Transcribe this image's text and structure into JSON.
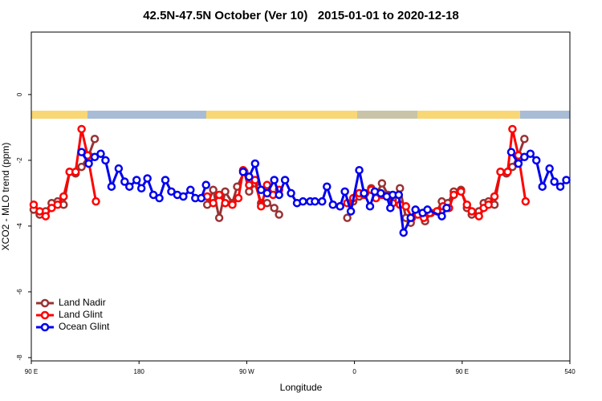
{
  "chart_data": {
    "type": "line",
    "title": "42.5N-47.5N October (Ver 10)   2015-01-01 to 2020-12-18",
    "xlabel": "Longitude",
    "ylabel": "XCO2 - MLO trend (ppm)",
    "xlim": [
      90,
      540
    ],
    "xticks": [
      {
        "value": 90,
        "label": "90 E"
      },
      180,
      {
        "value": 270,
        "label": "90 W"
      },
      {
        "value": 360,
        "label": "0"
      },
      {
        "value": 450,
        "label": "90 E"
      },
      540
    ],
    "ylim": [
      -8.1,
      1.9
    ],
    "yticks": [
      0,
      -2,
      -4,
      -6,
      -8
    ],
    "legend": "lower left",
    "series": [
      {
        "name": "Land Nadir",
        "color": "#993333",
        "x": [
          92,
          97,
          102,
          107,
          112,
          117,
          122,
          127,
          132,
          138,
          143,
          null,
          237,
          242,
          247,
          252,
          258,
          262,
          268,
          272,
          277,
          282,
          287,
          293,
          297,
          null,
          354,
          359,
          364,
          369,
          374,
          378,
          383,
          388,
          392,
          398,
          403,
          407,
          413,
          419,
          424,
          429,
          433,
          438,
          443,
          449,
          454,
          458,
          464,
          468,
          472,
          477,
          482,
          487,
          492,
          497,
          502
        ],
        "values": [
          -3.5,
          -3.65,
          -3.55,
          -3.3,
          -3.25,
          -3.35,
          -2.35,
          -2.4,
          -2.2,
          -1.85,
          -1.35,
          null,
          -3.35,
          -2.9,
          -3.75,
          -2.95,
          -3.3,
          -2.8,
          -2.35,
          -2.95,
          -2.7,
          -3.3,
          -3.3,
          -3.45,
          -3.65,
          null,
          -3.75,
          -3.25,
          -3.1,
          -3.0,
          -2.85,
          -3.05,
          -2.7,
          -3.05,
          -3.2,
          -2.85,
          -3.75,
          -3.9,
          -3.6,
          -3.85,
          -3.6,
          -3.55,
          -3.25,
          -3.3,
          -2.95,
          -2.9,
          -3.45,
          -3.65,
          -3.55,
          -3.3,
          -3.25,
          -3.35,
          -2.35,
          -2.4,
          -2.2,
          -1.85,
          -1.35
        ]
      },
      {
        "name": "Land Glint",
        "color": "#ff0000",
        "x": [
          92,
          97,
          102,
          107,
          112,
          117,
          122,
          127,
          132,
          137,
          144,
          null,
          237,
          242,
          247,
          252,
          258,
          263,
          267,
          272,
          277,
          282,
          287,
          292,
          297,
          null,
          348,
          354,
          359,
          364,
          368,
          374,
          378,
          383,
          388,
          392,
          398,
          403,
          408,
          413,
          418,
          423,
          429,
          434,
          439,
          443,
          449,
          454,
          458,
          464,
          468,
          472,
          477,
          482,
          488,
          492,
          497,
          503
        ],
        "values": [
          -3.35,
          -3.55,
          -3.7,
          -3.45,
          -3.35,
          -3.1,
          -2.35,
          -2.35,
          -1.05,
          -1.85,
          -3.25,
          null,
          -3.1,
          -3.3,
          -3.05,
          -3.3,
          -3.35,
          -3.15,
          -2.3,
          -2.75,
          -2.6,
          -3.4,
          -2.75,
          -3.05,
          -2.9,
          null,
          -3.4,
          -3.3,
          -3.15,
          -3.0,
          -3.05,
          -2.9,
          -3.15,
          -3.05,
          -3.1,
          -3.3,
          -3.35,
          -3.4,
          -3.75,
          -3.65,
          -3.75,
          -3.6,
          -3.55,
          -3.4,
          -3.45,
          -3.05,
          -2.95,
          -3.35,
          -3.55,
          -3.7,
          -3.45,
          -3.35,
          -3.1,
          -2.35,
          -2.35,
          -1.05,
          -1.85,
          -3.25
        ]
      },
      {
        "name": "Ocean Glint",
        "color": "#0000ee",
        "x": [
          132,
          138,
          143,
          148,
          152,
          157,
          163,
          168,
          172,
          178,
          182,
          187,
          192,
          197,
          202,
          207,
          212,
          217,
          223,
          227,
          232,
          236,
          null,
          267,
          272,
          277,
          282,
          287,
          293,
          297,
          302,
          307,
          312,
          317,
          323,
          327,
          333,
          337,
          342,
          348,
          352,
          357,
          364,
          368,
          373,
          377,
          382,
          387,
          390,
          392,
          397,
          401,
          407,
          411,
          417,
          421,
          433,
          437,
          null,
          491,
          497,
          502,
          507,
          512,
          517,
          523,
          527,
          532,
          537
        ],
        "values": [
          -1.75,
          -2.1,
          -1.9,
          -1.8,
          -2.0,
          -2.8,
          -2.25,
          -2.65,
          -2.8,
          -2.6,
          -2.85,
          -2.55,
          -3.05,
          -3.15,
          -2.6,
          -2.95,
          -3.05,
          -3.1,
          -2.9,
          -3.15,
          -3.15,
          -2.75,
          null,
          -2.35,
          -2.5,
          -2.1,
          -2.9,
          -3.0,
          -2.6,
          -3.05,
          -2.6,
          -3.0,
          -3.3,
          -3.25,
          -3.25,
          -3.25,
          -3.25,
          -2.8,
          -3.35,
          -3.4,
          -2.95,
          -3.55,
          -2.3,
          -3.0,
          -3.4,
          -2.95,
          -3.0,
          -3.1,
          -3.45,
          -3.05,
          -3.05,
          -4.2,
          -3.75,
          -3.5,
          -3.6,
          -3.5,
          -3.7,
          -3.45,
          null,
          -1.75,
          -2.1,
          -1.9,
          -1.8,
          -2.0,
          -2.8,
          -2.25,
          -2.65,
          -2.8,
          -2.6
        ]
      }
    ]
  }
}
